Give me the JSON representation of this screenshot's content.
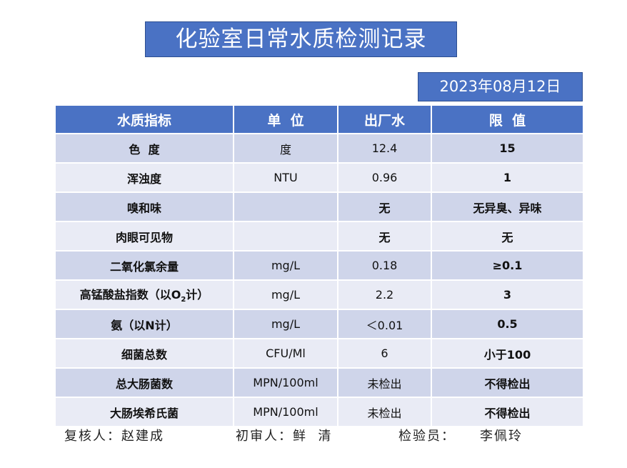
{
  "title": "化验室日常水质检测记录",
  "date": "2023年08月12日",
  "headers": [
    "水质指标",
    "单  位",
    "出厂水",
    "限  值"
  ],
  "rows": [
    {
      "item": "色  度",
      "unit": "度",
      "value": "12.4",
      "limit": "15"
    },
    {
      "item": "浑浊度",
      "unit": "NTU",
      "value": "0.96",
      "limit": "1"
    },
    {
      "item": "嗅和味",
      "unit": "",
      "value": "无",
      "limit": "无异臭、异味"
    },
    {
      "item": "肉眼可见物",
      "unit": "",
      "value": "无",
      "limit": "无"
    },
    {
      "item": "二氧化氯余量",
      "unit": "mg/L",
      "value": "0.18",
      "limit": "≥0.1"
    },
    {
      "item_prefix": "高锰酸盐指数（以O",
      "item_sub": "2",
      "item_suffix": "计）",
      "unit": "mg/L",
      "value": "2.2",
      "limit": "3"
    },
    {
      "item": "氨（以N计）",
      "unit": "mg/L",
      "value": "＜0.01",
      "limit": "0.5"
    },
    {
      "item": "细菌总数",
      "unit": "CFU/Ml",
      "value": "6",
      "limit": "小于100"
    },
    {
      "item": "总大肠菌数",
      "unit": "MPN/100ml",
      "value": "未检出",
      "limit": "不得检出"
    },
    {
      "item": "大肠埃希氏菌",
      "unit": "MPN/100ml",
      "value": "未检出",
      "limit": "不得检出"
    }
  ],
  "footer": {
    "reviewer": "复核人：赵建成",
    "first_reviewer": "初审人：鲜  清",
    "inspector_label": "检验员：",
    "inspector_name": "李佩玲"
  }
}
